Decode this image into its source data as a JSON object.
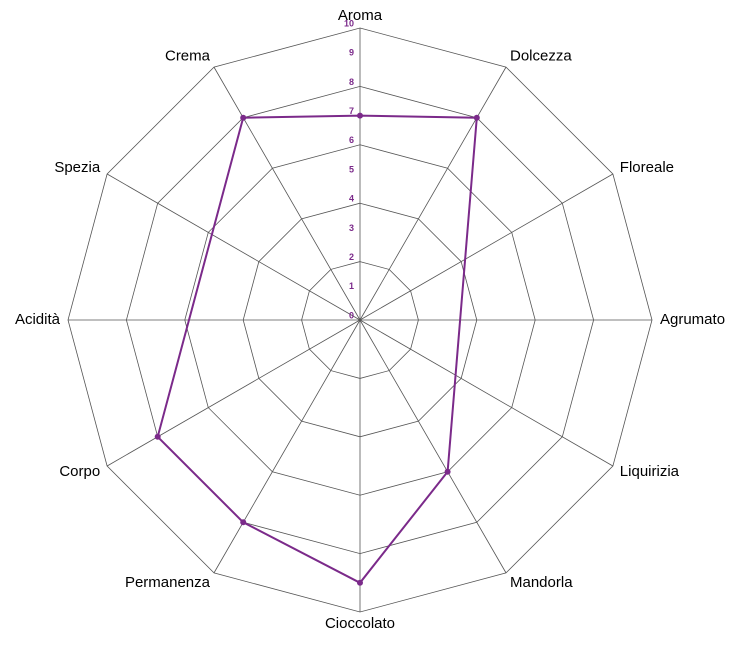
{
  "chart_data": {
    "type": "radar",
    "categories": [
      "Aroma",
      "Dolcezza",
      "Floreale",
      "Agrumato",
      "Liquirizia",
      "Mandorla",
      "Cioccolato",
      "Permanenza",
      "Corpo",
      "Acidità",
      "Spezia",
      "Crema"
    ],
    "series": [
      {
        "color": "#7b2a8a",
        "values": [
          7,
          8,
          null,
          null,
          null,
          6,
          9,
          8,
          8,
          null,
          null,
          8
        ]
      }
    ],
    "ylim": [
      0,
      10
    ],
    "yticks": [
      0,
      1,
      2,
      3,
      4,
      5,
      6,
      7,
      8,
      9,
      10
    ],
    "grid_rings": [
      2,
      4,
      6,
      8,
      10
    ],
    "span_gaps": true
  }
}
